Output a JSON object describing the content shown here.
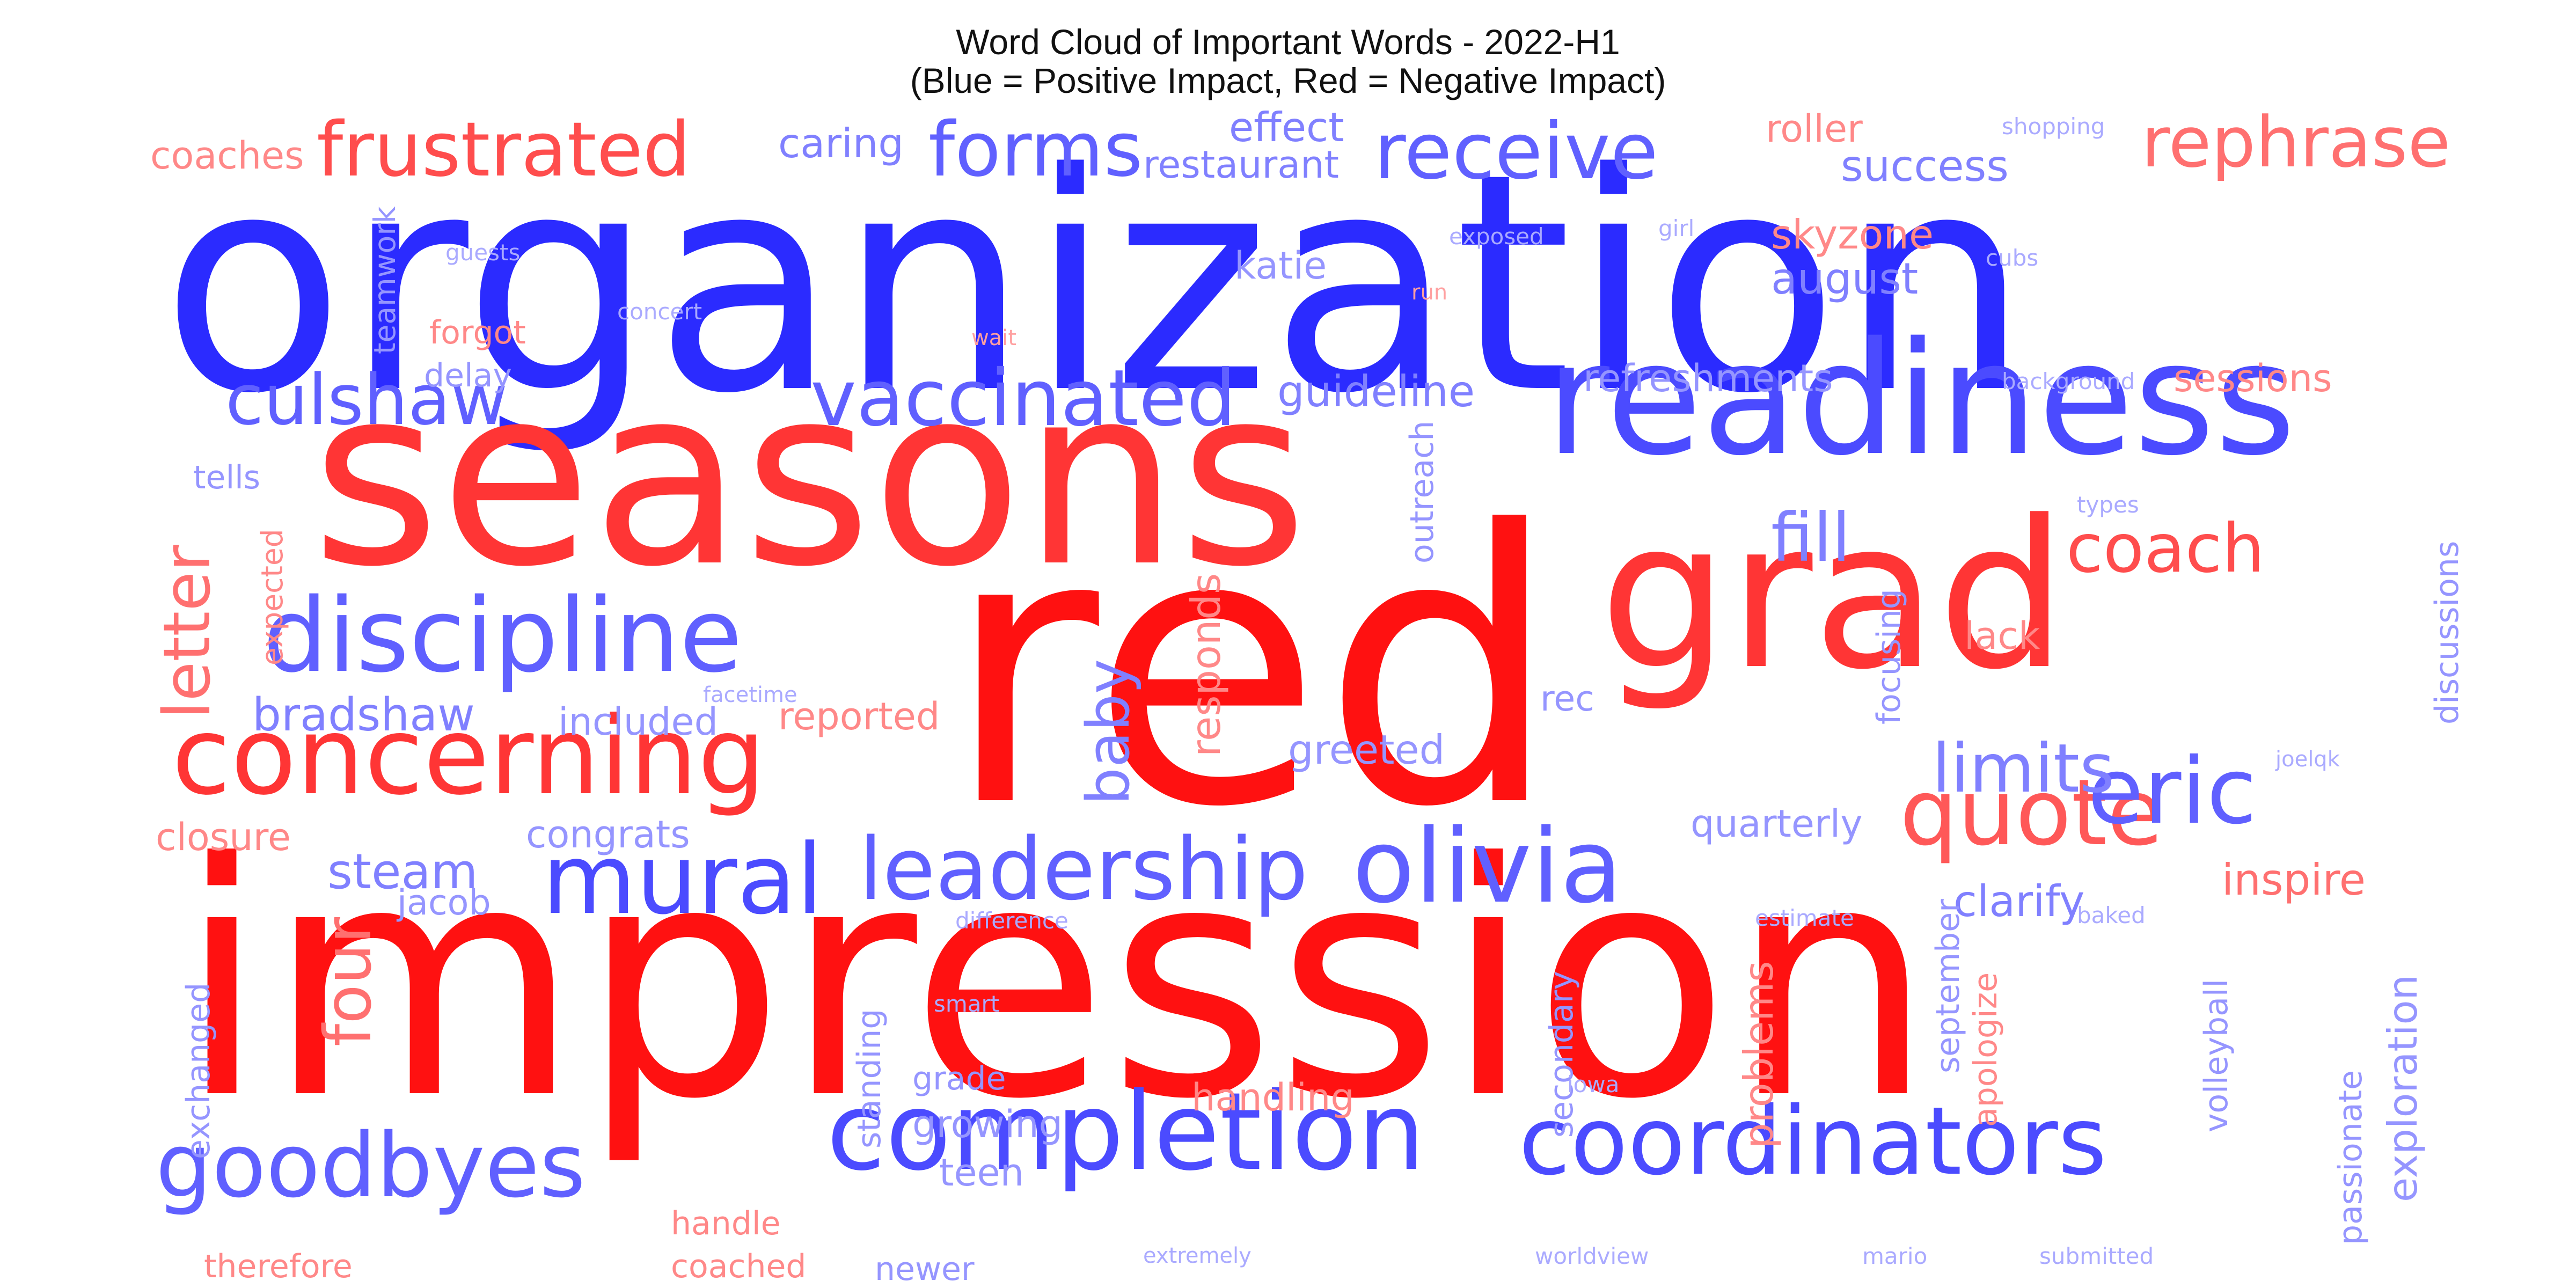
{
  "chart_data": {
    "type": "wordcloud",
    "title": "Word Cloud of Important Words - 2022-H1",
    "subtitle": "(Blue = Positive Impact, Red = Negative Impact)",
    "colors": {
      "positive": "#2b2bff",
      "negative": "#ff1111",
      "background": "#ffffff"
    },
    "words": [
      {
        "text": "organization",
        "weight": 1.0,
        "impact": "positive"
      },
      {
        "text": "impression",
        "weight": 1.0,
        "impact": "negative"
      },
      {
        "text": "red",
        "weight": 0.95,
        "impact": "negative"
      },
      {
        "text": "seasons",
        "weight": 0.78,
        "impact": "negative"
      },
      {
        "text": "grad",
        "weight": 0.62,
        "impact": "negative"
      },
      {
        "text": "readiness",
        "weight": 0.46,
        "impact": "positive"
      },
      {
        "text": "completion",
        "weight": 0.34,
        "impact": "positive"
      },
      {
        "text": "coordinators",
        "weight": 0.3,
        "impact": "positive"
      },
      {
        "text": "concerning",
        "weight": 0.33,
        "impact": "negative"
      },
      {
        "text": "discipline",
        "weight": 0.32,
        "impact": "positive"
      },
      {
        "text": "olivia",
        "weight": 0.31,
        "impact": "positive"
      },
      {
        "text": "mural",
        "weight": 0.29,
        "impact": "positive"
      },
      {
        "text": "quote",
        "weight": 0.28,
        "impact": "negative"
      },
      {
        "text": "eric",
        "weight": 0.27,
        "impact": "positive"
      },
      {
        "text": "goodbyes",
        "weight": 0.27,
        "impact": "positive"
      },
      {
        "text": "leadership",
        "weight": 0.26,
        "impact": "positive"
      },
      {
        "text": "vaccinated",
        "weight": 0.24,
        "impact": "positive"
      },
      {
        "text": "receive",
        "weight": 0.24,
        "impact": "positive"
      },
      {
        "text": "frustrated",
        "weight": 0.24,
        "impact": "negative"
      },
      {
        "text": "forms",
        "weight": 0.23,
        "impact": "positive"
      },
      {
        "text": "rephrase",
        "weight": 0.22,
        "impact": "negative"
      },
      {
        "text": "culshaw",
        "weight": 0.2,
        "impact": "positive"
      },
      {
        "text": "coach",
        "weight": 0.21,
        "impact": "negative"
      },
      {
        "text": "fill",
        "weight": 0.21,
        "impact": "positive"
      },
      {
        "text": "limits",
        "weight": 0.2,
        "impact": "positive"
      },
      {
        "text": "letter",
        "weight": 0.2,
        "impact": "negative"
      },
      {
        "text": "four",
        "weight": 0.2,
        "impact": "negative"
      },
      {
        "text": "baby",
        "weight": 0.18,
        "impact": "positive"
      },
      {
        "text": "steam",
        "weight": 0.15,
        "impact": "positive"
      },
      {
        "text": "bradshaw",
        "weight": 0.15,
        "impact": "positive"
      },
      {
        "text": "success",
        "weight": 0.14,
        "impact": "positive"
      },
      {
        "text": "august",
        "weight": 0.14,
        "impact": "positive"
      },
      {
        "text": "guideline",
        "weight": 0.14,
        "impact": "positive"
      },
      {
        "text": "clarify",
        "weight": 0.14,
        "impact": "positive"
      },
      {
        "text": "inspire",
        "weight": 0.13,
        "impact": "negative"
      },
      {
        "text": "effect",
        "weight": 0.13,
        "impact": "positive"
      },
      {
        "text": "caring",
        "weight": 0.13,
        "impact": "positive"
      },
      {
        "text": "restaurant",
        "weight": 0.13,
        "impact": "positive"
      },
      {
        "text": "coaches",
        "weight": 0.12,
        "impact": "negative"
      },
      {
        "text": "roller",
        "weight": 0.12,
        "impact": "negative"
      },
      {
        "text": "skyzone",
        "weight": 0.12,
        "impact": "negative"
      },
      {
        "text": "katie",
        "weight": 0.12,
        "impact": "positive"
      },
      {
        "text": "refreshments",
        "weight": 0.12,
        "impact": "positive"
      },
      {
        "text": "sessions",
        "weight": 0.12,
        "impact": "negative"
      },
      {
        "text": "reported",
        "weight": 0.12,
        "impact": "negative"
      },
      {
        "text": "included",
        "weight": 0.12,
        "impact": "positive"
      },
      {
        "text": "greeted",
        "weight": 0.12,
        "impact": "positive"
      },
      {
        "text": "congrats",
        "weight": 0.12,
        "impact": "positive"
      },
      {
        "text": "quarterly",
        "weight": 0.12,
        "impact": "positive"
      },
      {
        "text": "closure",
        "weight": 0.11,
        "impact": "negative"
      },
      {
        "text": "jacob",
        "weight": 0.11,
        "impact": "positive"
      },
      {
        "text": "responds",
        "weight": 0.11,
        "impact": "negative"
      },
      {
        "text": "rec",
        "weight": 0.11,
        "impact": "positive"
      },
      {
        "text": "lack",
        "weight": 0.11,
        "impact": "negative"
      },
      {
        "text": "exploration",
        "weight": 0.11,
        "impact": "positive"
      },
      {
        "text": "growing",
        "weight": 0.11,
        "impact": "positive"
      },
      {
        "text": "teen",
        "weight": 0.11,
        "impact": "positive"
      },
      {
        "text": "handling",
        "weight": 0.11,
        "impact": "negative"
      },
      {
        "text": "newer",
        "weight": 0.11,
        "impact": "positive"
      },
      {
        "text": "coached",
        "weight": 0.11,
        "impact": "negative"
      },
      {
        "text": "therefore",
        "weight": 0.11,
        "impact": "negative"
      },
      {
        "text": "problems",
        "weight": 0.11,
        "impact": "negative"
      },
      {
        "text": "forgot",
        "weight": 0.1,
        "impact": "negative"
      },
      {
        "text": "delay",
        "weight": 0.1,
        "impact": "positive"
      },
      {
        "text": "tells",
        "weight": 0.1,
        "impact": "positive"
      },
      {
        "text": "grade",
        "weight": 0.1,
        "impact": "positive"
      },
      {
        "text": "handle",
        "weight": 0.1,
        "impact": "negative"
      },
      {
        "text": "outreach",
        "weight": 0.1,
        "impact": "positive"
      },
      {
        "text": "focusing",
        "weight": 0.1,
        "impact": "positive"
      },
      {
        "text": "discussions",
        "weight": 0.1,
        "impact": "positive"
      },
      {
        "text": "september",
        "weight": 0.1,
        "impact": "positive"
      },
      {
        "text": "apologize",
        "weight": 0.1,
        "impact": "negative"
      },
      {
        "text": "volleyball",
        "weight": 0.1,
        "impact": "positive"
      },
      {
        "text": "passionate",
        "weight": 0.1,
        "impact": "positive"
      },
      {
        "text": "secondary",
        "weight": 0.1,
        "impact": "positive"
      },
      {
        "text": "standing",
        "weight": 0.1,
        "impact": "positive"
      },
      {
        "text": "exchanged",
        "weight": 0.1,
        "impact": "positive"
      },
      {
        "text": "expected",
        "weight": 0.09,
        "impact": "negative"
      },
      {
        "text": "teamwork",
        "weight": 0.09,
        "impact": "positive"
      },
      {
        "text": "shopping",
        "weight": 0.07,
        "impact": "positive"
      },
      {
        "text": "guests",
        "weight": 0.07,
        "impact": "positive"
      },
      {
        "text": "exposed",
        "weight": 0.07,
        "impact": "positive"
      },
      {
        "text": "girl",
        "weight": 0.07,
        "impact": "positive"
      },
      {
        "text": "cubs",
        "weight": 0.07,
        "impact": "positive"
      },
      {
        "text": "concert",
        "weight": 0.07,
        "impact": "positive"
      },
      {
        "text": "run",
        "weight": 0.07,
        "impact": "negative"
      },
      {
        "text": "wait",
        "weight": 0.07,
        "impact": "negative"
      },
      {
        "text": "background",
        "weight": 0.07,
        "impact": "positive"
      },
      {
        "text": "types",
        "weight": 0.07,
        "impact": "positive"
      },
      {
        "text": "facetime",
        "weight": 0.07,
        "impact": "positive"
      },
      {
        "text": "joelqk",
        "weight": 0.07,
        "impact": "positive"
      },
      {
        "text": "difference",
        "weight": 0.07,
        "impact": "positive"
      },
      {
        "text": "estimate",
        "weight": 0.07,
        "impact": "positive"
      },
      {
        "text": "baked",
        "weight": 0.07,
        "impact": "positive"
      },
      {
        "text": "smart",
        "weight": 0.07,
        "impact": "positive"
      },
      {
        "text": "iowa",
        "weight": 0.07,
        "impact": "positive"
      },
      {
        "text": "extremely",
        "weight": 0.07,
        "impact": "positive"
      },
      {
        "text": "worldview",
        "weight": 0.07,
        "impact": "positive"
      },
      {
        "text": "mario",
        "weight": 0.07,
        "impact": "positive"
      },
      {
        "text": "submitted",
        "weight": 0.07,
        "impact": "positive"
      }
    ]
  }
}
